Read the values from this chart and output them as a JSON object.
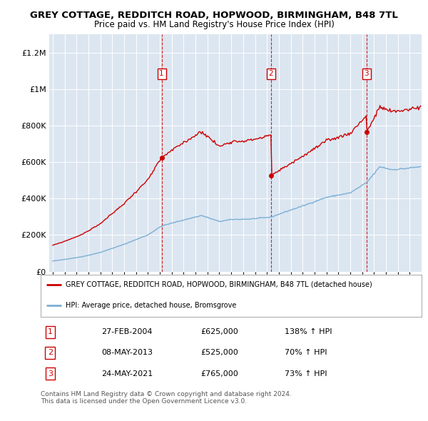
{
  "title": "GREY COTTAGE, REDDITCH ROAD, HOPWOOD, BIRMINGHAM, B48 7TL",
  "subtitle": "Price paid vs. HM Land Registry's House Price Index (HPI)",
  "title_fontsize": 9.5,
  "subtitle_fontsize": 8.5,
  "background_color": "#ffffff",
  "plot_bg_color": "#dce6f1",
  "grid_color": "#ffffff",
  "red_line_color": "#cc0000",
  "blue_line_color": "#7bafd4",
  "sale_vline_color": "#cc0000",
  "ylim": [
    0,
    1300000
  ],
  "yticks": [
    0,
    200000,
    400000,
    600000,
    800000,
    1000000,
    1200000
  ],
  "ytick_labels": [
    "£0",
    "£200K",
    "£400K",
    "£600K",
    "£800K",
    "£1M",
    "£1.2M"
  ],
  "x_start_year": 1995,
  "x_end_year": 2026,
  "sales": [
    {
      "num": 1,
      "year": 2004.15,
      "price": 625000,
      "date_str": "27-FEB-2004",
      "pct": "138%",
      "arrow": "↑"
    },
    {
      "num": 2,
      "year": 2013.35,
      "price": 525000,
      "date_str": "08-MAY-2013",
      "pct": "70%",
      "arrow": "↑"
    },
    {
      "num": 3,
      "year": 2021.38,
      "price": 765000,
      "date_str": "24-MAY-2021",
      "pct": "73%",
      "arrow": "↑"
    }
  ],
  "legend_label_red": "GREY COTTAGE, REDDITCH ROAD, HOPWOOD, BIRMINGHAM, B48 7TL (detached house)",
  "legend_label_blue": "HPI: Average price, detached house, Bromsgrove",
  "footer_text": "Contains HM Land Registry data © Crown copyright and database right 2024.\nThis data is licensed under the Open Government Licence v3.0."
}
